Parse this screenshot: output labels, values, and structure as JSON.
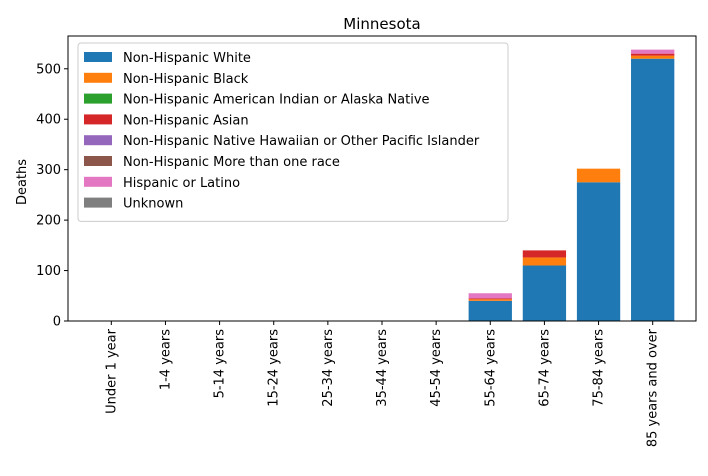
{
  "chart_data": {
    "type": "bar",
    "stacked": true,
    "title": "Minnesota",
    "xlabel": "",
    "ylabel": "Deaths",
    "ylim": [
      0,
      565
    ],
    "yticks": [
      0,
      100,
      200,
      300,
      400,
      500
    ],
    "grid": false,
    "legend_position": "top-left",
    "categories": [
      "Under 1 year",
      "1-4 years",
      "5-14 years",
      "15-24 years",
      "25-34 years",
      "35-44 years",
      "45-54 years",
      "55-64 years",
      "65-74 years",
      "75-84 years",
      "85 years and over"
    ],
    "series": [
      {
        "name": "Non-Hispanic White",
        "color": "#1f77b4",
        "values": [
          0,
          0,
          0,
          0,
          0,
          0,
          0,
          40,
          110,
          275,
          520
        ]
      },
      {
        "name": "Non-Hispanic Black",
        "color": "#ff7f0e",
        "values": [
          0,
          0,
          0,
          0,
          0,
          0,
          0,
          3,
          16,
          27,
          6
        ]
      },
      {
        "name": "Non-Hispanic American Indian or Alaska Native",
        "color": "#2ca02c",
        "values": [
          0,
          0,
          0,
          0,
          0,
          0,
          0,
          0,
          0,
          0,
          0
        ]
      },
      {
        "name": "Non-Hispanic Asian",
        "color": "#d62728",
        "values": [
          0,
          0,
          0,
          0,
          0,
          0,
          0,
          2,
          14,
          0,
          4
        ]
      },
      {
        "name": "Non-Hispanic Native Hawaiian or Other Pacific Islander",
        "color": "#9467bd",
        "values": [
          0,
          0,
          0,
          0,
          0,
          0,
          0,
          0,
          0,
          0,
          0
        ]
      },
      {
        "name": "Non-Hispanic More than one race",
        "color": "#8c564b",
        "values": [
          0,
          0,
          0,
          0,
          0,
          0,
          0,
          0,
          0,
          0,
          0
        ]
      },
      {
        "name": "Hispanic or Latino",
        "color": "#e377c2",
        "values": [
          0,
          0,
          0,
          0,
          0,
          0,
          0,
          10,
          0,
          0,
          8
        ]
      },
      {
        "name": "Unknown",
        "color": "#7f7f7f",
        "values": [
          0,
          0,
          0,
          0,
          0,
          0,
          0,
          0,
          0,
          0,
          0
        ]
      }
    ]
  }
}
